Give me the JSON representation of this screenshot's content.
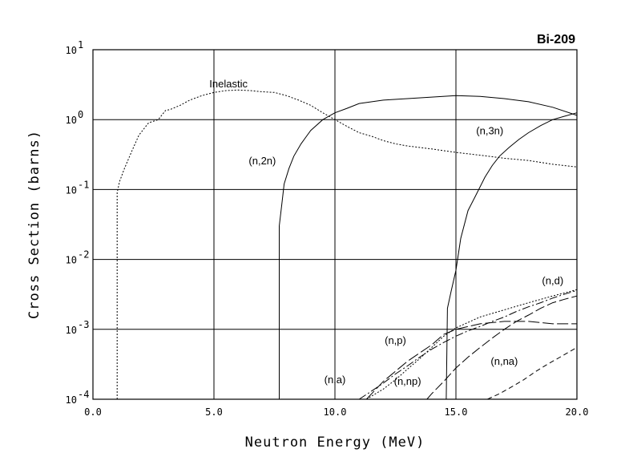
{
  "chart_data": {
    "type": "line",
    "title": "Bi-209",
    "xlabel": "Neutron Energy (MeV)",
    "ylabel": "Cross Section (barns)",
    "xlim": [
      0,
      20
    ],
    "ylim": [
      0.0001,
      10
    ],
    "yscale": "log",
    "grid": true,
    "x_ticks": [
      "0.0",
      "5.0",
      "10.0",
      "15.0",
      "20.0"
    ],
    "y_ticks": [
      {
        "base": "10",
        "exp": "1"
      },
      {
        "base": "10",
        "exp": "0"
      },
      {
        "base": "10",
        "exp": "-1"
      },
      {
        "base": "10",
        "exp": "-2"
      },
      {
        "base": "10",
        "exp": "-3"
      },
      {
        "base": "10",
        "exp": "-4"
      }
    ],
    "series": [
      {
        "name": "Inelastic",
        "dash": "2,2",
        "x": [
          1.0,
          1.0,
          1.1,
          1.3,
          1.6,
          1.9,
          2.3,
          2.7,
          3.0,
          3.2,
          3.6,
          4.0,
          4.5,
          5.0,
          5.5,
          6.0,
          6.5,
          7.0,
          7.5,
          8.0,
          8.5,
          9.0,
          9.5,
          10.0,
          10.5,
          11.0,
          11.5,
          12.0,
          12.5,
          13.0,
          14.0,
          15.0,
          16.0,
          17.0,
          18.0,
          19.0,
          20.0
        ],
        "y": [
          0.0001,
          0.09,
          0.13,
          0.2,
          0.35,
          0.6,
          0.9,
          1.0,
          1.35,
          1.4,
          1.6,
          1.9,
          2.2,
          2.45,
          2.6,
          2.65,
          2.6,
          2.5,
          2.45,
          2.2,
          1.9,
          1.6,
          1.25,
          1.0,
          0.8,
          0.65,
          0.58,
          0.5,
          0.45,
          0.42,
          0.38,
          0.34,
          0.31,
          0.28,
          0.26,
          0.23,
          0.21
        ]
      },
      {
        "name": "(n,2n)",
        "dash": "",
        "x": [
          7.7,
          7.7,
          7.8,
          7.9,
          8.1,
          8.3,
          8.6,
          9.0,
          9.5,
          10.0,
          10.5,
          11.0,
          12.0,
          13.0,
          14.0,
          15.0,
          16.0,
          17.0,
          18.0,
          19.0,
          20.0
        ],
        "y": [
          0.0001,
          0.03,
          0.06,
          0.12,
          0.2,
          0.3,
          0.45,
          0.7,
          1.0,
          1.25,
          1.45,
          1.7,
          1.9,
          2.0,
          2.1,
          2.2,
          2.15,
          2.0,
          1.8,
          1.5,
          1.15
        ]
      },
      {
        "name": "(n,3n)",
        "dash": "",
        "x": [
          14.6,
          14.65,
          14.8,
          15.0,
          15.2,
          15.5,
          15.8,
          16.2,
          16.5,
          16.8,
          17.2,
          17.6,
          18.0,
          18.5,
          19.0,
          19.5,
          20.0
        ],
        "y": [
          0.0001,
          0.002,
          0.0035,
          0.007,
          0.02,
          0.05,
          0.08,
          0.15,
          0.22,
          0.3,
          0.4,
          0.52,
          0.65,
          0.82,
          1.0,
          1.12,
          1.25
        ]
      },
      {
        "name": "(n,a)",
        "dash": "10,3,2,3",
        "x": [
          11.0,
          11.5,
          12.0,
          12.5,
          13.0,
          13.5,
          14.0,
          14.5,
          15.0,
          15.5,
          16.0,
          16.5,
          17.0,
          17.5,
          18.0,
          18.5,
          19.0,
          19.5,
          20.0
        ],
        "y": [
          0.0001,
          0.00013,
          0.00017,
          0.00023,
          0.0003,
          0.0004,
          0.00052,
          0.00065,
          0.0008,
          0.00095,
          0.0011,
          0.0013,
          0.0015,
          0.0018,
          0.0021,
          0.0024,
          0.0028,
          0.0032,
          0.0036
        ]
      },
      {
        "name": "(n,p)",
        "dash": "14,4",
        "x": [
          11.3,
          12.0,
          13.0,
          14.0,
          14.5,
          15.0,
          16.0,
          17.0,
          18.0,
          19.0,
          20.0
        ],
        "y": [
          0.0001,
          0.00018,
          0.00035,
          0.0006,
          0.00085,
          0.001,
          0.0012,
          0.0013,
          0.0013,
          0.0012,
          0.0012
        ]
      },
      {
        "name": "(n,d)",
        "dash": "2,2",
        "x": [
          11.3,
          12.0,
          12.5,
          13.0,
          13.5,
          14.0,
          14.5,
          15.0,
          16.0,
          17.0,
          18.0,
          19.0,
          20.0
        ],
        "y": [
          0.0001,
          0.00014,
          0.00019,
          0.00027,
          0.00038,
          0.00055,
          0.0008,
          0.00105,
          0.0015,
          0.0019,
          0.0024,
          0.003,
          0.0037
        ]
      },
      {
        "name": "(n,np)",
        "dash": "12,4",
        "x": [
          13.8,
          14.0,
          14.5,
          15.0,
          15.5,
          16.0,
          16.5,
          17.0,
          17.5,
          18.0,
          18.5,
          19.0,
          19.5,
          20.0
        ],
        "y": [
          0.0001,
          0.00012,
          0.00018,
          0.00028,
          0.0004,
          0.00055,
          0.00075,
          0.001,
          0.0013,
          0.0016,
          0.002,
          0.0024,
          0.0027,
          0.003
        ]
      },
      {
        "name": "(n,na)",
        "dash": "6,4",
        "x": [
          16.3,
          16.8,
          17.3,
          17.8,
          18.3,
          18.8,
          19.3,
          19.7,
          20.0
        ],
        "y": [
          0.0001,
          0.00012,
          0.00015,
          0.00019,
          0.00025,
          0.00032,
          0.0004,
          0.00048,
          0.00055
        ]
      }
    ],
    "annotations": [
      {
        "text": "Inelastic",
        "x": 5.6,
        "y": 2.9
      },
      {
        "text": "(n,2n)",
        "x": 7.0,
        "y": 0.23
      },
      {
        "text": "(n,3n)",
        "x": 16.4,
        "y": 0.62
      },
      {
        "text": "(n,d)",
        "x": 19.0,
        "y": 0.0044
      },
      {
        "text": "(n,p)",
        "x": 12.5,
        "y": 0.00062
      },
      {
        "text": "(n,a)",
        "x": 10.0,
        "y": 0.00017
      },
      {
        "text": "(n,np)",
        "x": 13.0,
        "y": 0.00016
      },
      {
        "text": "(n,na)",
        "x": 17.0,
        "y": 0.00031
      }
    ]
  }
}
